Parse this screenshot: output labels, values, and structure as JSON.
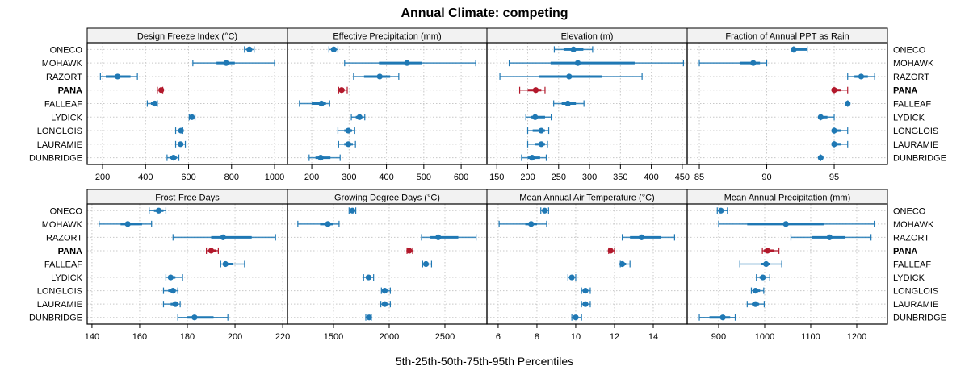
{
  "chart_data": {
    "type": "dotplot-percentiles",
    "title": "Annual Climate: competing",
    "xlabel": "5th-25th-50th-75th-95th Percentiles",
    "ylabel": "",
    "grid": true,
    "categories": [
      "ONECO",
      "MOHAWK",
      "RAZORT",
      "PANA",
      "FALLEAF",
      "LYDICK",
      "LONGLOIS",
      "LAURAMIE",
      "DUNBRIDGE"
    ],
    "highlight_category": "PANA",
    "colors": {
      "default": "#1f78b4",
      "highlight": "#b2182b",
      "strip_bg": "#f2f2f2",
      "grid": "#c8c8c8",
      "border": "#000000"
    },
    "stat_order": [
      "p5",
      "p25",
      "p50",
      "p75",
      "p95"
    ],
    "panels": [
      {
        "title": "Design Freeze Index (°C)",
        "xlim": [
          128.6,
          1060
        ],
        "ticks": [
          200,
          400,
          600,
          800,
          1000
        ],
        "tick_labels": [
          "200",
          "400",
          "600",
          "800",
          "1000"
        ],
        "values": [
          [
            860,
            870,
            883,
            895,
            905
          ],
          [
            620,
            730,
            775,
            815,
            1000
          ],
          [
            190,
            215,
            270,
            330,
            362
          ],
          [
            455,
            462,
            473,
            478,
            480
          ],
          [
            408,
            425,
            443,
            452,
            455
          ],
          [
            603,
            610,
            615,
            622,
            630
          ],
          [
            540,
            552,
            565,
            570,
            573
          ],
          [
            540,
            550,
            563,
            575,
            585
          ],
          [
            500,
            515,
            530,
            545,
            555
          ]
        ]
      },
      {
        "title": "Effective Precipitation (mm)",
        "xlim": [
          135,
          669
        ],
        "ticks": [
          200,
          300,
          400,
          500,
          600
        ],
        "tick_labels": [
          "200",
          "300",
          "400",
          "500",
          "600"
        ],
        "values": [
          [
            246,
            252,
            259,
            265,
            270
          ],
          [
            288,
            380,
            455,
            495,
            639
          ],
          [
            312,
            340,
            382,
            410,
            433
          ],
          [
            272,
            274,
            280,
            288,
            295
          ],
          [
            167,
            200,
            226,
            238,
            248
          ],
          [
            306,
            318,
            328,
            335,
            342
          ],
          [
            270,
            287,
            298,
            308,
            315
          ],
          [
            272,
            287,
            298,
            310,
            317
          ],
          [
            193,
            210,
            224,
            250,
            276
          ]
        ]
      },
      {
        "title": "Elevation (m)",
        "xlim": [
          134,
          458
        ],
        "ticks": [
          150,
          200,
          250,
          300,
          350,
          400,
          450
        ],
        "tick_labels": [
          "150",
          "200",
          "250",
          "300",
          "350",
          "400",
          "450"
        ],
        "values": [
          [
            243,
            258,
            274,
            290,
            305
          ],
          [
            170,
            237,
            281,
            373,
            452
          ],
          [
            155,
            218,
            267,
            320,
            385
          ],
          [
            187,
            200,
            213,
            222,
            228
          ],
          [
            242,
            255,
            265,
            278,
            291
          ],
          [
            197,
            205,
            212,
            228,
            238
          ],
          [
            200,
            208,
            222,
            228,
            234
          ],
          [
            200,
            212,
            222,
            228,
            232
          ],
          [
            190,
            200,
            207,
            220,
            230
          ]
        ]
      },
      {
        "title": "Fraction of Annual PPT as Rain",
        "xlim": [
          84.1,
          98.95
        ],
        "ticks": [
          85,
          90,
          95
        ],
        "tick_labels": [
          "85",
          "90",
          "95"
        ],
        "values": [
          [
            92,
            92,
            92,
            93,
            93
          ],
          [
            85,
            88,
            89,
            89.5,
            90
          ],
          [
            96,
            96.5,
            97,
            97.5,
            98
          ],
          [
            95,
            95,
            95,
            95.5,
            96
          ],
          [
            96,
            96,
            96,
            96,
            96
          ],
          [
            94,
            94,
            94,
            94.5,
            95
          ],
          [
            95,
            95,
            95,
            95.5,
            96
          ],
          [
            95,
            95,
            95,
            95.5,
            96
          ],
          [
            94,
            94,
            94,
            94,
            94
          ]
        ]
      },
      {
        "title": "Frost-Free Days",
        "xlim": [
          138,
          222
        ],
        "ticks": [
          140,
          160,
          180,
          200,
          220
        ],
        "tick_labels": [
          "140",
          "160",
          "180",
          "200",
          "220"
        ],
        "values": [
          [
            164,
            166,
            168,
            170,
            171
          ],
          [
            143,
            152,
            155,
            161,
            165
          ],
          [
            174,
            190,
            195,
            207,
            217
          ],
          [
            188,
            189,
            190,
            192,
            193
          ],
          [
            194,
            195,
            196,
            199,
            204
          ],
          [
            171,
            172,
            173,
            175,
            178
          ],
          [
            170,
            172,
            174,
            175,
            176
          ],
          [
            170,
            173,
            175,
            176,
            177
          ],
          [
            176,
            180,
            183,
            191,
            197
          ]
        ]
      },
      {
        "title": "Growing Degree Days (°C)",
        "xlim": [
          1087,
          2877
        ],
        "ticks": [
          1500,
          2000,
          2500
        ],
        "tick_labels": [
          "1500",
          "2000",
          "2500"
        ],
        "values": [
          [
            1640,
            1655,
            1670,
            1685,
            1700
          ],
          [
            1180,
            1380,
            1450,
            1500,
            1550
          ],
          [
            2290,
            2370,
            2440,
            2620,
            2780
          ],
          [
            2160,
            2170,
            2180,
            2195,
            2210
          ],
          [
            2300,
            2315,
            2330,
            2350,
            2380
          ],
          [
            1770,
            1790,
            1815,
            1840,
            1860
          ],
          [
            1930,
            1945,
            1960,
            1980,
            2010
          ],
          [
            1925,
            1945,
            1960,
            1980,
            2010
          ],
          [
            1790,
            1805,
            1820,
            1830,
            1840
          ]
        ]
      },
      {
        "title": "Mean Annual Air Temperature (°C)",
        "xlim": [
          5.42,
          15.75
        ],
        "ticks": [
          6,
          8,
          10,
          12,
          14
        ],
        "tick_labels": [
          "6",
          "8",
          "10",
          "12",
          "14"
        ],
        "values": [
          [
            8.2,
            8.3,
            8.4,
            8.5,
            8.6
          ],
          [
            6.05,
            7.4,
            7.7,
            8.0,
            8.5
          ],
          [
            12.4,
            12.8,
            13.4,
            14.4,
            15.1
          ],
          [
            11.7,
            11.75,
            11.8,
            11.9,
            12.0
          ],
          [
            12.3,
            12.4,
            12.4,
            12.6,
            12.8
          ],
          [
            9.6,
            9.7,
            9.8,
            9.9,
            10.0
          ],
          [
            10.3,
            10.4,
            10.5,
            10.6,
            10.75
          ],
          [
            10.3,
            10.4,
            10.5,
            10.6,
            10.75
          ],
          [
            9.8,
            9.9,
            10.0,
            10.1,
            10.3
          ]
        ]
      },
      {
        "title": "Mean Annual Precipitation (mm)",
        "xlim": [
          831.6,
          1266.7
        ],
        "ticks": [
          900,
          1000,
          1100,
          1200
        ],
        "tick_labels": [
          "900",
          "1000",
          "1100",
          "1200"
        ],
        "values": [
          [
            897,
            900,
            905,
            912,
            919
          ],
          [
            900,
            962,
            1046,
            1128,
            1238
          ],
          [
            1057,
            1103,
            1141,
            1175,
            1231
          ],
          [
            995,
            998,
            1006,
            1020,
            1031
          ],
          [
            946,
            992,
            1003,
            1012,
            1037
          ],
          [
            982,
            989,
            996,
            1003,
            1011
          ],
          [
            971,
            975,
            980,
            990,
            998
          ],
          [
            962,
            972,
            980,
            988,
            999
          ],
          [
            858,
            880,
            909,
            925,
            936
          ]
        ]
      }
    ]
  }
}
